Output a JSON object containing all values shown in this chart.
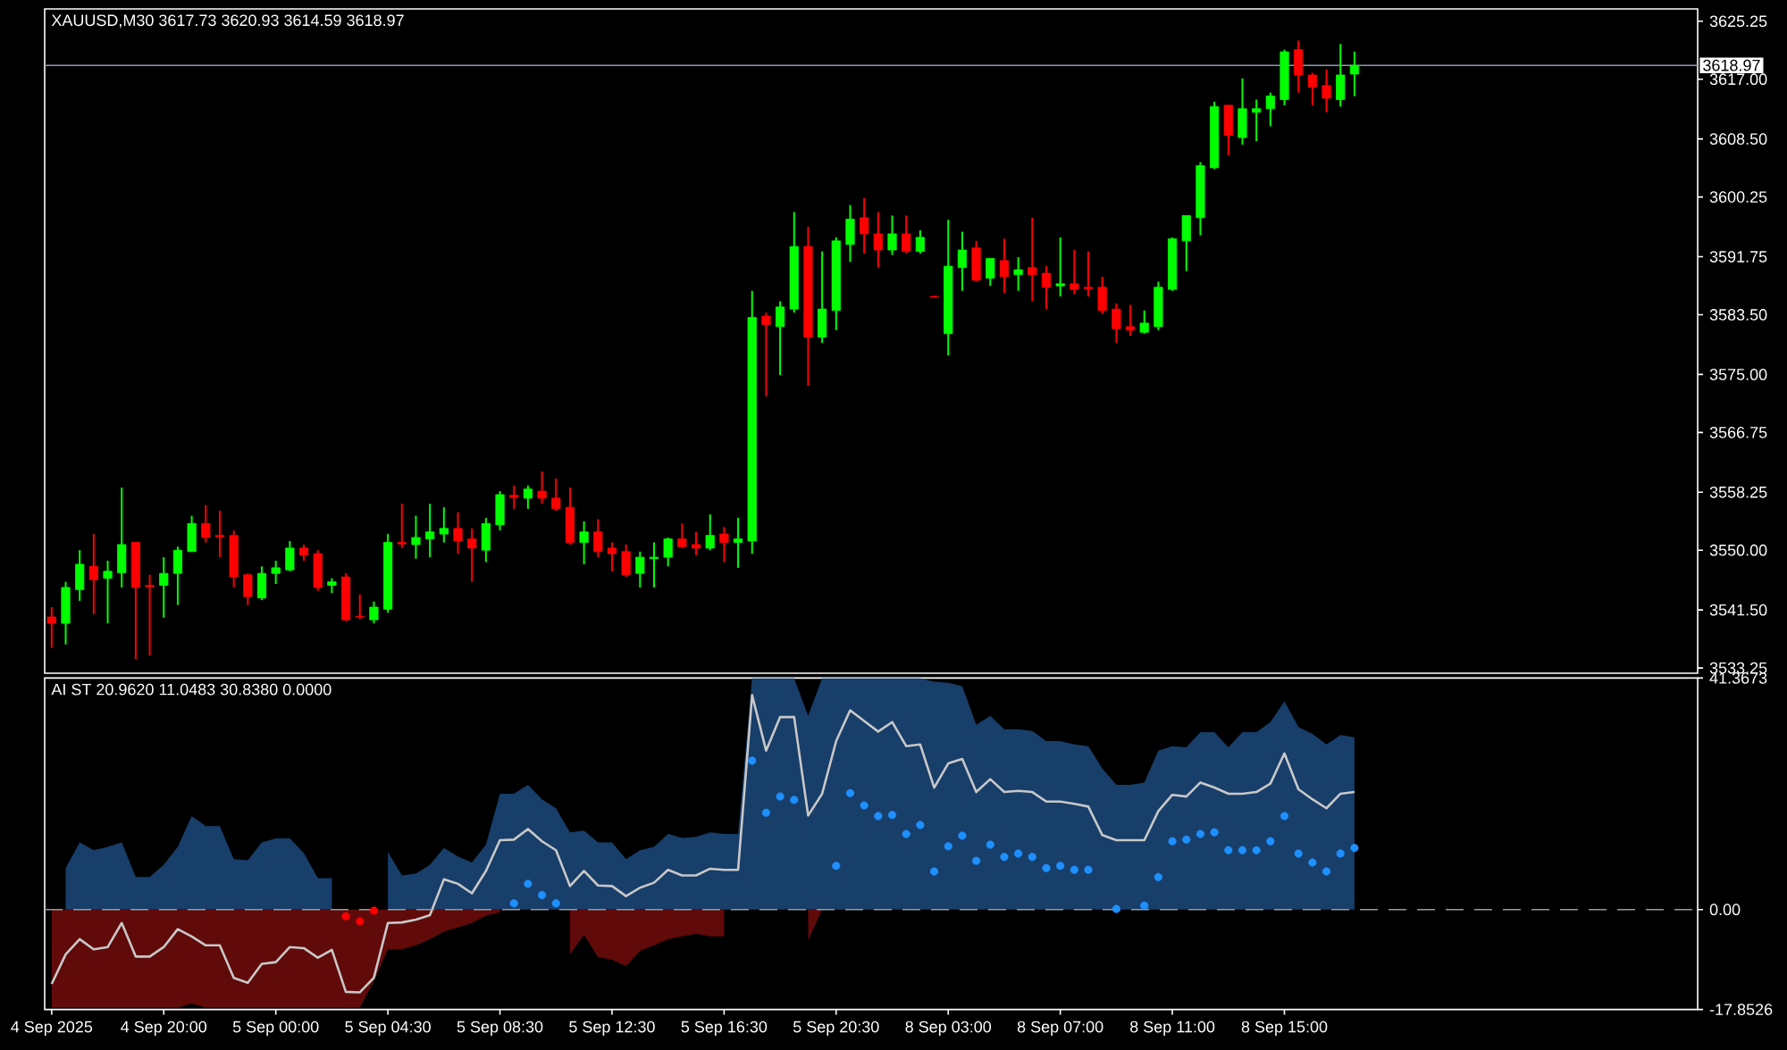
{
  "chart_data": [
    {
      "type": "candlestick",
      "title": "XAUUSD,M30 3617.73 3620.93 3614.59 3618.97",
      "categories": [
        null,
        null,
        null,
        null,
        null,
        null,
        null,
        null,
        null,
        null,
        null,
        null,
        null,
        null,
        null,
        null,
        null,
        null,
        null,
        null,
        null,
        null,
        null,
        null,
        null,
        null,
        null,
        null,
        null,
        null,
        null,
        null,
        null,
        null,
        null,
        null,
        null,
        null,
        null,
        null,
        null,
        null,
        null,
        null,
        null,
        null,
        null,
        null,
        null,
        null,
        null,
        null,
        null,
        null,
        null,
        null,
        null,
        null,
        null,
        null,
        null,
        null,
        null,
        null,
        null,
        null,
        null,
        null,
        null,
        null,
        null,
        null,
        null,
        null,
        null,
        null,
        null,
        null,
        null,
        null,
        null,
        null,
        null,
        null,
        null,
        null,
        null,
        null,
        null,
        null,
        null,
        null,
        null,
        null,
        null,
        null,
        null,
        null,
        null,
        null,
        null,
        null,
        null,
        null,
        null,
        null,
        null,
        null,
        null,
        null,
        null,
        null,
        null,
        null,
        null,
        null,
        null,
        null
      ],
      "ohlc": [
        [
          3540.5,
          3541.9,
          3536.1,
          3539.6
        ],
        [
          3539.6,
          3545.5,
          3536.6,
          3544.7
        ],
        [
          3544.4,
          3550.0,
          3542.8,
          3548.0
        ],
        [
          3547.7,
          3552.3,
          3540.9,
          3545.8
        ],
        [
          3546.0,
          3548.5,
          3539.6,
          3547.0
        ],
        [
          3546.8,
          3558.9,
          3544.7,
          3550.8
        ],
        [
          3551.1,
          3551.1,
          3534.5,
          3544.7
        ],
        [
          3545.0,
          3546.5,
          3535.0,
          3544.8
        ],
        [
          3545.0,
          3549.0,
          3540.4,
          3546.7
        ],
        [
          3546.7,
          3550.5,
          3542.2,
          3550.0
        ],
        [
          3549.8,
          3554.9,
          3549.8,
          3553.8
        ],
        [
          3553.8,
          3556.4,
          3551.1,
          3551.8
        ],
        [
          3552.1,
          3555.6,
          3549.0,
          3551.9
        ],
        [
          3552.1,
          3552.8,
          3544.7,
          3546.2
        ],
        [
          3546.5,
          3546.7,
          3542.2,
          3543.4
        ],
        [
          3543.2,
          3547.7,
          3542.9,
          3546.7
        ],
        [
          3546.7,
          3548.5,
          3545.2,
          3547.5
        ],
        [
          3547.2,
          3551.3,
          3547.0,
          3550.3
        ],
        [
          3550.3,
          3550.8,
          3548.5,
          3549.3
        ],
        [
          3549.5,
          3550.0,
          3544.2,
          3544.7
        ],
        [
          3545.0,
          3546.0,
          3543.9,
          3545.5
        ],
        [
          3546.2,
          3546.7,
          3539.9,
          3540.1
        ],
        [
          3540.6,
          3543.7,
          3540.2,
          3540.5
        ],
        [
          3540.1,
          3542.7,
          3539.6,
          3541.9
        ],
        [
          3541.6,
          3552.3,
          3541.1,
          3551.1
        ],
        [
          3551.1,
          3556.6,
          3550.3,
          3550.9
        ],
        [
          3550.8,
          3554.9,
          3548.8,
          3551.8
        ],
        [
          3551.6,
          3556.6,
          3549.0,
          3552.6
        ],
        [
          3552.3,
          3556.1,
          3551.1,
          3553.1
        ],
        [
          3553.1,
          3555.4,
          3549.5,
          3551.3
        ],
        [
          3551.6,
          3553.1,
          3545.5,
          3550.3
        ],
        [
          3550.0,
          3554.6,
          3548.3,
          3553.8
        ],
        [
          3553.6,
          3558.4,
          3552.8,
          3557.9
        ],
        [
          3557.8,
          3559.2,
          3555.9,
          3557.5
        ],
        [
          3557.4,
          3559.2,
          3555.9,
          3558.7
        ],
        [
          3558.4,
          3561.2,
          3556.6,
          3557.4
        ],
        [
          3557.4,
          3560.2,
          3555.6,
          3555.9
        ],
        [
          3556.1,
          3558.9,
          3550.8,
          3551.1
        ],
        [
          3551.1,
          3554.1,
          3548.0,
          3552.6
        ],
        [
          3552.6,
          3554.4,
          3549.0,
          3549.8
        ],
        [
          3550.3,
          3551.1,
          3547.0,
          3549.5
        ],
        [
          3549.8,
          3550.8,
          3546.2,
          3546.5
        ],
        [
          3546.7,
          3549.8,
          3544.7,
          3549.0
        ],
        [
          3548.8,
          3551.1,
          3544.7,
          3549.0
        ],
        [
          3549.0,
          3551.8,
          3547.7,
          3551.6
        ],
        [
          3551.6,
          3553.8,
          3550.3,
          3550.5
        ],
        [
          3550.8,
          3552.6,
          3549.3,
          3550.3
        ],
        [
          3550.3,
          3555.1,
          3550.0,
          3552.1
        ],
        [
          3552.3,
          3553.3,
          3548.3,
          3551.1
        ],
        [
          3551.1,
          3554.6,
          3547.5,
          3551.6
        ],
        [
          3551.3,
          3586.9,
          3549.5,
          3583.1
        ],
        [
          3583.3,
          3583.8,
          3571.9,
          3582.1
        ],
        [
          3581.8,
          3585.4,
          3574.9,
          3584.6
        ],
        [
          3584.3,
          3598.1,
          3583.8,
          3593.2
        ],
        [
          3593.2,
          3596.0,
          3573.4,
          3580.3
        ],
        [
          3580.3,
          3592.5,
          3579.5,
          3584.3
        ],
        [
          3584.1,
          3594.5,
          3581.3,
          3594.0
        ],
        [
          3593.5,
          3599.1,
          3591.0,
          3597.1
        ],
        [
          3597.3,
          3600.1,
          3592.2,
          3595.0
        ],
        [
          3595.0,
          3598.1,
          3590.2,
          3592.7
        ],
        [
          3592.7,
          3597.6,
          3592.0,
          3595.0
        ],
        [
          3595.0,
          3597.6,
          3592.2,
          3592.5
        ],
        [
          3592.5,
          3595.5,
          3592.2,
          3594.5
        ],
        [
          3586.1,
          3586.2,
          3585.9,
          3586.0
        ],
        [
          3580.8,
          3597.0,
          3577.7,
          3590.4
        ],
        [
          3590.2,
          3595.3,
          3586.9,
          3592.7
        ],
        [
          3593.0,
          3594.0,
          3588.2,
          3588.4
        ],
        [
          3588.7,
          3591.5,
          3587.6,
          3591.5
        ],
        [
          3591.2,
          3594.3,
          3586.6,
          3588.9
        ],
        [
          3589.2,
          3591.7,
          3586.9,
          3589.9
        ],
        [
          3590.2,
          3597.3,
          3585.4,
          3589.2
        ],
        [
          3589.4,
          3590.4,
          3584.3,
          3587.4
        ],
        [
          3587.6,
          3594.5,
          3586.1,
          3587.9
        ],
        [
          3587.9,
          3592.7,
          3586.4,
          3587.1
        ],
        [
          3587.4,
          3592.5,
          3586.1,
          3587.2
        ],
        [
          3587.4,
          3588.9,
          3583.6,
          3584.1
        ],
        [
          3584.3,
          3585.1,
          3579.5,
          3581.5
        ],
        [
          3581.8,
          3584.9,
          3580.5,
          3581.3
        ],
        [
          3581.0,
          3584.1,
          3580.8,
          3582.3
        ],
        [
          3581.8,
          3588.2,
          3581.3,
          3587.4
        ],
        [
          3587.1,
          3594.5,
          3586.9,
          3594.3
        ],
        [
          3594.0,
          3597.6,
          3589.7,
          3597.6
        ],
        [
          3597.3,
          3605.2,
          3594.8,
          3604.7
        ],
        [
          3604.4,
          3613.8,
          3604.2,
          3613.1
        ],
        [
          3613.3,
          3613.3,
          3606.2,
          3609.0
        ],
        [
          3608.7,
          3617.1,
          3607.7,
          3612.8
        ],
        [
          3612.3,
          3614.1,
          3608.2,
          3612.8
        ],
        [
          3612.8,
          3615.1,
          3610.3,
          3614.6
        ],
        [
          3614.1,
          3621.2,
          3613.3,
          3620.9
        ],
        [
          3621.2,
          3622.5,
          3615.1,
          3617.6
        ],
        [
          3617.6,
          3617.9,
          3613.3,
          3615.9
        ],
        [
          3616.1,
          3618.4,
          3612.3,
          3614.3
        ],
        [
          3614.1,
          3622.0,
          3613.1,
          3617.6
        ],
        [
          3617.73,
          3620.93,
          3614.59,
          3618.97
        ],
        null,
        null,
        null,
        null,
        null,
        null,
        null,
        null,
        null,
        null,
        null,
        null,
        null,
        null,
        null,
        null,
        null,
        null,
        null,
        null,
        null,
        null,
        null,
        null
      ],
      "colors": [
        "#ff0000",
        "#00ff00",
        "#00ff00",
        "#ff0000",
        "#00ff00",
        "#00ff00",
        "#ff0000",
        "#ff0000",
        "#00ff00",
        "#00ff00",
        "#00ff00",
        "#ff0000",
        "#ff0000",
        "#ff0000",
        "#ff0000",
        "#00ff00",
        "#00ff00",
        "#00ff00",
        "#ff0000",
        "#ff0000",
        "#00ff00",
        "#ff0000",
        "#ff0000",
        "#00ff00",
        "#00ff00",
        "#ff0000",
        "#00ff00",
        "#00ff00",
        "#00ff00",
        "#ff0000",
        "#ff0000",
        "#00ff00",
        "#00ff00",
        "#ff0000",
        "#00ff00",
        "#ff0000",
        "#ff0000",
        "#ff0000",
        "#00ff00",
        "#ff0000",
        "#ff0000",
        "#ff0000",
        "#00ff00",
        "#00ff00",
        "#00ff00",
        "#ff0000",
        "#ff0000",
        "#00ff00",
        "#ff0000",
        "#00ff00",
        "#00ff00",
        "#ff0000",
        "#00ff00",
        "#00ff00",
        "#ff0000",
        "#00ff00",
        "#00ff00",
        "#00ff00",
        "#ff0000",
        "#ff0000",
        "#00ff00",
        "#ff0000",
        "#00ff00",
        "#ff0000",
        "#00ff00",
        "#00ff00",
        "#ff0000",
        "#00ff00",
        "#ff0000",
        "#00ff00",
        "#ff0000",
        "#ff0000",
        "#00ff00",
        "#ff0000",
        "#ff0000",
        "#ff0000",
        "#ff0000",
        "#ff0000",
        "#00ff00",
        "#00ff00",
        "#00ff00",
        "#00ff00",
        "#00ff00",
        "#00ff00",
        "#ff0000",
        "#00ff00",
        "#00ff00",
        "#00ff00",
        "#00ff00",
        "#ff0000",
        "#ff0000",
        "#ff0000",
        "#00ff00",
        "#00ff00",
        null,
        null,
        null,
        null,
        null,
        null,
        null,
        null,
        null,
        null,
        null,
        null,
        null,
        null,
        null,
        null,
        null,
        null,
        null,
        null,
        null,
        null,
        null,
        null
      ],
      "ylim": [
        3532.5,
        3627.0
      ],
      "yticks": [
        3533.25,
        {
          "value": 3541.5,
          "label": "3541.50"
        },
        {
          "value": 3550,
          "label": "3550.00"
        },
        3558.25,
        3566.75,
        {
          "value": 3575,
          "label": "3575.00"
        },
        {
          "value": 3583.5,
          "label": "3583.50"
        },
        3591.75,
        3600.25,
        {
          "value": 3608.5,
          "label": "3608.50"
        },
        {
          "value": 3617,
          "label": "3617.00"
        },
        3625.25
      ],
      "ref_lines": [
        {
          "axis": "y",
          "value": 3618.97,
          "label": "3618.97",
          "color": "#8c9aae"
        }
      ]
    },
    {
      "type": "line",
      "title": "AI ST 20.9620 11.0483 30.8380 0.0000",
      "categories": [
        "4 Sep 2025",
        null,
        null,
        null,
        null,
        null,
        null,
        null,
        "4 Sep 20:00",
        null,
        null,
        null,
        null,
        null,
        null,
        null,
        "5 Sep 00:00",
        null,
        null,
        null,
        null,
        null,
        null,
        null,
        "5 Sep 04:30",
        null,
        null,
        null,
        null,
        null,
        null,
        null,
        "5 Sep 08:30",
        null,
        null,
        null,
        null,
        null,
        null,
        null,
        "5 Sep 12:30",
        null,
        null,
        null,
        null,
        null,
        null,
        null,
        "5 Sep 16:30",
        null,
        null,
        null,
        null,
        null,
        null,
        null,
        "5 Sep 20:30",
        null,
        null,
        null,
        null,
        null,
        null,
        null,
        "8 Sep 03:00",
        null,
        null,
        null,
        null,
        null,
        null,
        null,
        "8 Sep 07:00",
        null,
        null,
        null,
        null,
        null,
        null,
        null,
        "8 Sep 11:00",
        null,
        null,
        null,
        null,
        null,
        null,
        null,
        "8 Sep 15:00",
        null,
        null,
        null,
        null,
        null,
        null,
        null,
        null,
        null,
        null,
        null,
        null,
        null,
        null,
        null,
        null,
        null,
        null,
        null,
        null,
        null,
        null,
        null,
        null,
        null,
        null,
        null,
        null,
        null
      ],
      "series": [
        {
          "type": "area",
          "color": "#183e6a",
          "values": [
            null,
            7.4,
            12.0,
            10.6,
            11.2,
            12.0,
            5.8,
            5.8,
            8.0,
            11.2,
            16.7,
            14.9,
            14.9,
            9.0,
            8.8,
            12.0,
            12.7,
            12.7,
            10.1,
            5.6,
            5.6,
            null,
            null,
            null,
            10.3,
            6.1,
            6.4,
            8.0,
            11.0,
            9.5,
            8.4,
            11.6,
            20.7,
            20.7,
            22.3,
            19.7,
            18.1,
            13.8,
            14.1,
            12.0,
            12.0,
            9.0,
            10.6,
            11.2,
            13.5,
            12.8,
            13.0,
            13.8,
            13.5,
            13.5,
            41.3,
            41.3,
            41.3,
            41.3,
            34.6,
            41.3,
            41.3,
            41.3,
            41.3,
            41.3,
            41.3,
            41.3,
            41.3,
            40.7,
            40.5,
            39.9,
            33.0,
            34.6,
            32.2,
            32.2,
            31.9,
            30.1,
            30.1,
            29.5,
            29.2,
            25.2,
            22.3,
            22.3,
            22.7,
            28.4,
            29.2,
            29.0,
            31.7,
            31.7,
            29.0,
            31.7,
            31.7,
            33.5,
            37.2,
            32.6,
            31.4,
            29.5,
            31.2,
            30.8,
            null,
            null,
            null,
            null,
            null,
            null,
            null,
            null,
            null,
            null,
            null,
            null,
            null,
            null,
            null,
            null,
            null,
            null,
            null,
            null,
            null,
            null,
            null,
            null
          ]
        },
        {
          "type": "area",
          "color": "#600a0a",
          "values": [
            -17.5,
            -17.5,
            -17.5,
            -17.5,
            -17.5,
            -17.5,
            -17.5,
            -17.5,
            -17.5,
            -17.5,
            -16.8,
            -17.5,
            -17.5,
            -17.5,
            -17.5,
            -17.5,
            -17.5,
            -17.5,
            -17.5,
            -17.5,
            -17.5,
            -17.5,
            -17.5,
            -12.8,
            -7.1,
            -7.1,
            -6.4,
            -5.3,
            -3.9,
            -3.2,
            -2.4,
            -1.1,
            -0.5,
            null,
            null,
            null,
            null,
            -8.0,
            -4.5,
            -8.5,
            -9.0,
            -10.1,
            -7.4,
            -6.4,
            -5.3,
            -4.8,
            -4.3,
            -4.8,
            -4.8,
            null,
            null,
            null,
            null,
            null,
            -5.5,
            0,
            null,
            null,
            null,
            null,
            null,
            null,
            null,
            null,
            null,
            null,
            null,
            null,
            null,
            null,
            null,
            null,
            null,
            null,
            null,
            null,
            null,
            null,
            null,
            null,
            null,
            null,
            null,
            null,
            null,
            null,
            null,
            null,
            null,
            null,
            null,
            null,
            null,
            null,
            null,
            null,
            null,
            null,
            null,
            null,
            null,
            null,
            null,
            null,
            null,
            null,
            null,
            null,
            null,
            null,
            null,
            null,
            null,
            null,
            null,
            null,
            null,
            null
          ]
        },
        {
          "type": "line",
          "color": "#c8c8c8",
          "values": [
            -13.3,
            -8.0,
            -5.3,
            -7.1,
            -6.7,
            -2.4,
            -8.4,
            -8.4,
            -6.7,
            -3.5,
            -4.8,
            -6.4,
            -6.4,
            -12.2,
            -13.1,
            -9.7,
            -9.4,
            -6.7,
            -6.9,
            -8.6,
            -7.2,
            -14.7,
            -14.8,
            -12.2,
            -2.4,
            -2.3,
            -1.8,
            -1.0,
            5.4,
            4.6,
            2.9,
            6.9,
            12.4,
            12.5,
            14.4,
            12.2,
            10.6,
            4.2,
            6.9,
            4.3,
            4.2,
            2.4,
            3.9,
            4.8,
            7.1,
            6.1,
            6.1,
            7.3,
            7.1,
            7.1,
            38.3,
            28.4,
            34.4,
            34.4,
            16.8,
            20.7,
            30.1,
            35.6,
            33.7,
            31.8,
            33.5,
            29.2,
            29.5,
            21.8,
            26.1,
            26.9,
            21.0,
            23.3,
            21.0,
            21.2,
            21.0,
            19.3,
            19.3,
            18.9,
            18.4,
            13.3,
            12.4,
            12.4,
            12.4,
            17.6,
            20.5,
            20.2,
            22.7,
            21.8,
            20.7,
            20.7,
            21.0,
            22.5,
            27.9,
            21.5,
            19.7,
            18.1,
            20.7,
            21.0,
            null,
            null,
            null,
            null,
            null,
            null,
            null,
            null,
            null,
            null,
            null,
            null,
            null,
            null,
            null,
            null,
            null,
            null,
            null,
            null,
            null,
            null,
            null,
            null
          ]
        },
        {
          "type": "scatter",
          "color": "#1e90ff",
          "marker": "circle",
          "values": [
            null,
            null,
            null,
            null,
            null,
            null,
            null,
            null,
            null,
            null,
            null,
            null,
            null,
            null,
            null,
            null,
            null,
            null,
            null,
            null,
            null,
            null,
            null,
            null,
            null,
            null,
            null,
            null,
            null,
            null,
            null,
            null,
            null,
            1.1,
            4.6,
            2.6,
            1.1,
            null,
            null,
            null,
            null,
            null,
            null,
            null,
            null,
            null,
            null,
            null,
            null,
            null,
            26.6,
            17.3,
            20.2,
            19.6,
            null,
            null,
            7.8,
            20.8,
            18.6,
            16.7,
            16.9,
            13.5,
            15.1,
            6.8,
            11.3,
            13.2,
            8.7,
            11.6,
            9.4,
            10.0,
            9.4,
            7.4,
            7.8,
            7.1,
            7.1,
            null,
            0.1,
            null,
            0.7,
            5.8,
            12.2,
            12.5,
            13.5,
            13.8,
            10.6,
            10.6,
            10.6,
            12.2,
            16.7,
            10.0,
            8.4,
            6.8,
            10.0,
            11.0,
            null,
            null,
            null,
            null,
            null,
            null,
            null,
            null,
            null,
            null,
            null,
            null,
            null,
            null,
            null,
            null,
            null,
            null,
            null,
            null,
            null,
            null,
            null,
            null
          ]
        },
        {
          "type": "scatter",
          "color": "#ff0000",
          "marker": "circle",
          "values": [
            null,
            null,
            null,
            null,
            null,
            null,
            null,
            null,
            null,
            null,
            null,
            null,
            null,
            null,
            null,
            null,
            null,
            null,
            null,
            null,
            null,
            -1.2,
            -2.1,
            -0.2,
            null,
            null,
            null,
            null,
            null,
            null,
            null,
            null,
            null,
            null,
            null,
            null,
            null,
            null,
            null,
            null,
            null,
            null,
            null,
            null,
            null,
            null,
            null,
            null,
            null,
            null,
            null,
            null,
            null,
            null,
            null,
            null,
            null,
            null,
            null,
            null,
            null,
            null,
            null,
            null,
            null,
            null,
            null,
            null,
            null,
            null,
            null,
            null,
            null,
            null,
            null,
            null,
            null,
            null,
            null,
            null,
            null,
            null,
            null,
            null,
            null,
            null,
            null,
            null,
            null,
            null,
            null,
            null,
            null,
            null,
            null,
            null,
            null,
            null,
            null,
            null,
            null,
            null,
            null,
            null,
            null,
            null,
            null,
            null,
            null,
            null,
            null,
            null,
            null,
            null,
            null,
            null,
            null,
            null
          ]
        }
      ],
      "ylim": [
        -17.8526,
        41.3673
      ],
      "yticks": [
        -17.8526,
        {
          "value": 0,
          "label": "0.00"
        },
        41.3673
      ],
      "ref_lines": [
        {
          "axis": "y",
          "value": 0,
          "color": "#9a9a9a",
          "line_style": "dashed"
        }
      ]
    }
  ]
}
